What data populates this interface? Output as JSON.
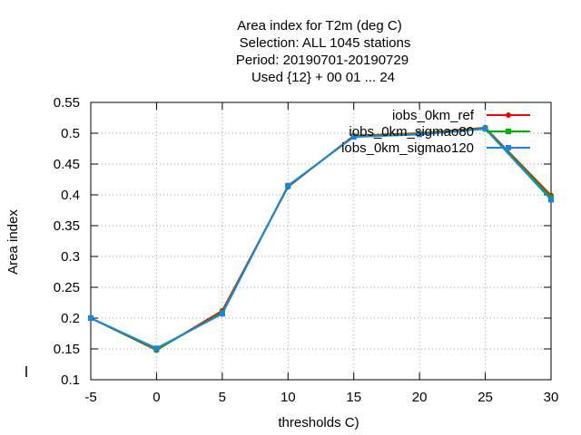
{
  "title_lines": [
    "Area index  for T2m (deg C)",
    "Selection: ALL   1045 stations",
    "Period: 20190701-20190729",
    "Used {12} + 00 01 ... 24"
  ],
  "chart_data": {
    "type": "line",
    "title": "Area index  for T2m (deg C)",
    "xlabel": "thresholds C)",
    "ylabel": "Area index",
    "xlim": [
      -5,
      30
    ],
    "ylim": [
      0.1,
      0.55
    ],
    "x_ticks": [
      "-5",
      "0",
      "5",
      "10",
      "15",
      "20",
      "25",
      "30"
    ],
    "y_ticks": [
      "0.1",
      "0.15",
      "0.2",
      "0.25",
      "0.3",
      "0.35",
      "0.4",
      "0.45",
      "0.5",
      "0.55"
    ],
    "grid": true,
    "legend_position": "top-right",
    "x": [
      -5,
      0,
      5,
      10,
      15,
      20,
      25,
      30
    ],
    "series": [
      {
        "name": "iobs_0km_ref",
        "color": "#ff0000",
        "marker": "circle",
        "values": [
          0.2,
          0.148,
          0.212,
          0.413,
          0.496,
          0.5,
          0.509,
          0.399
        ]
      },
      {
        "name": "iobs_0km_sigmao80",
        "color": "#00b000",
        "marker": "square",
        "values": [
          0.2,
          0.149,
          0.209,
          0.414,
          0.495,
          0.499,
          0.508,
          0.396
        ]
      },
      {
        "name": "iobs_0km_sigmao120",
        "color": "#1a85e0",
        "marker": "square",
        "values": [
          0.2,
          0.151,
          0.207,
          0.415,
          0.494,
          0.498,
          0.507,
          0.392
        ]
      }
    ]
  }
}
